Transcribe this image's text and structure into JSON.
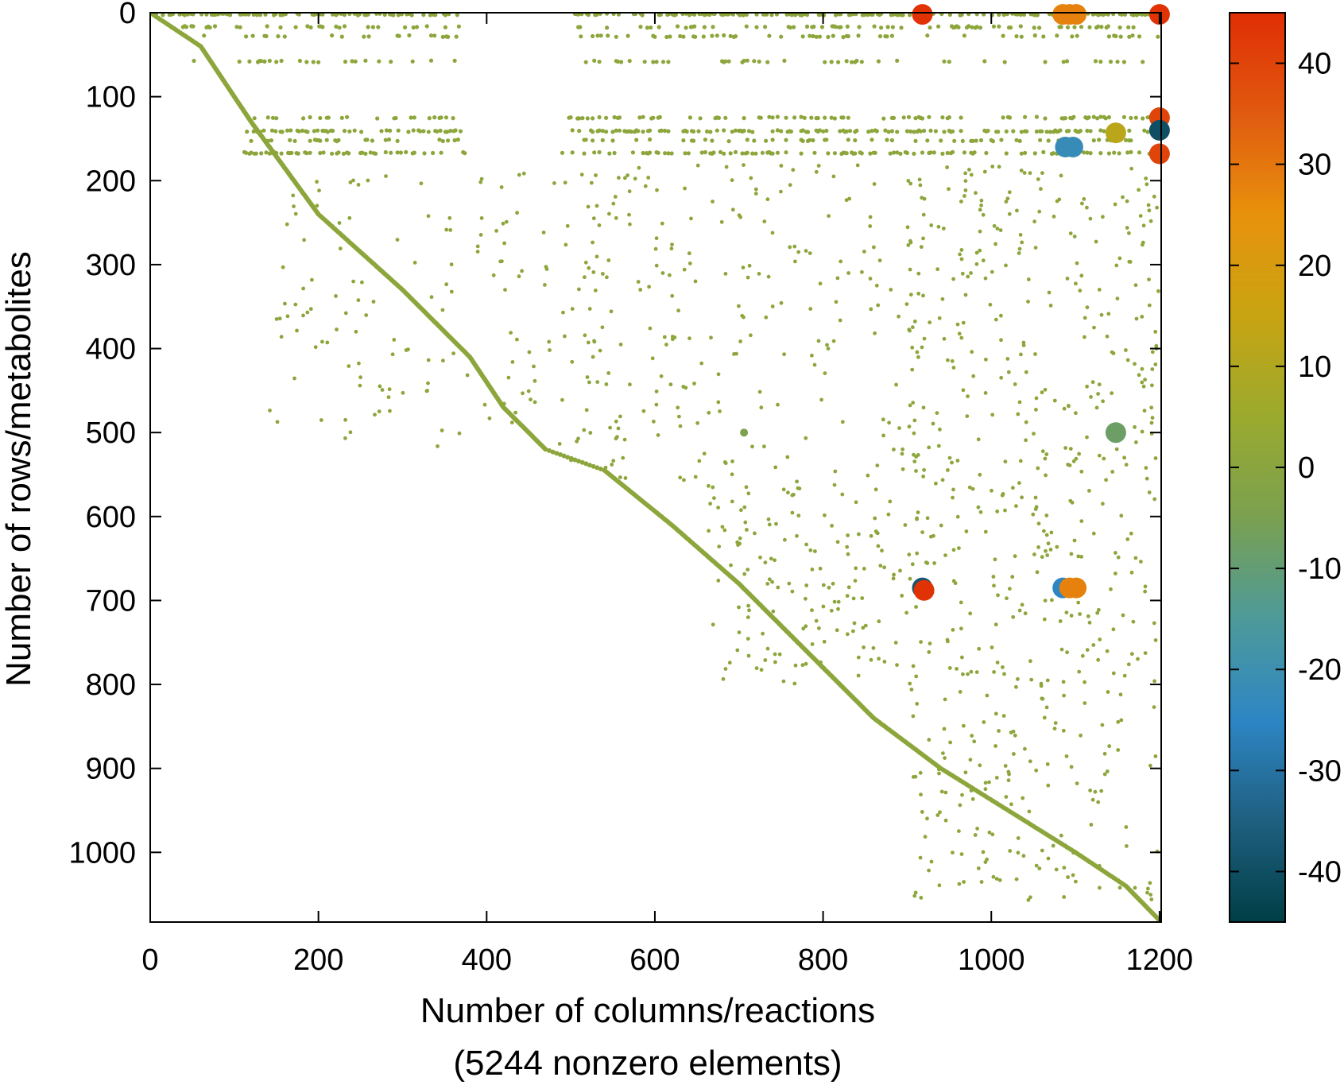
{
  "chart_data": {
    "type": "scatter",
    "title": "",
    "xlabel": "Number of columns/reactions",
    "xlabel_line2": "(5244 nonzero elements)",
    "ylabel": "Number of rows/metabolites",
    "xlim": [
      0,
      1202
    ],
    "ylim": [
      1083,
      0
    ],
    "y_inverted": true,
    "grid": false,
    "legend": "none",
    "x_ticks": [
      0,
      200,
      400,
      600,
      800,
      1000,
      1200
    ],
    "x_tick_labels": [
      "0",
      "200",
      "400",
      "600",
      "800",
      "1000",
      "1200"
    ],
    "y_ticks": [
      0,
      100,
      200,
      300,
      400,
      500,
      600,
      700,
      800,
      900,
      1000
    ],
    "y_tick_labels": [
      "0",
      "100",
      "200",
      "300",
      "400",
      "500",
      "600",
      "700",
      "800",
      "900",
      "1000"
    ],
    "colorbar": {
      "range": [
        -45,
        45
      ],
      "ticks": [
        40,
        30,
        20,
        10,
        0,
        -10,
        -20,
        -30,
        -40
      ],
      "tick_labels": [
        "40",
        "30",
        "20",
        "10",
        "0",
        "-10",
        "-20",
        "-30",
        "-40"
      ],
      "colormap": [
        "#003f45",
        "#1f5f80",
        "#2d86c4",
        "#4d9a9a",
        "#7aa050",
        "#9aaa2e",
        "#c8a412",
        "#e8920c",
        "#e05a10",
        "#e02e04"
      ]
    },
    "default_value": 1,
    "diagonal_band": [
      [
        0,
        0
      ],
      [
        60,
        40
      ],
      [
        120,
        130
      ],
      [
        200,
        240
      ],
      [
        300,
        330
      ],
      [
        380,
        410
      ],
      [
        420,
        470
      ],
      [
        470,
        520
      ],
      [
        540,
        545
      ],
      [
        620,
        610
      ],
      [
        700,
        680
      ],
      [
        780,
        760
      ],
      [
        860,
        840
      ],
      [
        940,
        900
      ],
      [
        1020,
        950
      ],
      [
        1100,
        1000
      ],
      [
        1160,
        1040
      ],
      [
        1202,
        1083
      ]
    ],
    "row_bands": [
      {
        "y": 2,
        "segments": [
          [
            5,
            370
          ],
          [
            505,
            1202
          ]
        ],
        "density": 0.45
      },
      {
        "y": 17,
        "segments": [
          [
            25,
            370
          ],
          [
            505,
            1190
          ]
        ],
        "density": 0.18
      },
      {
        "y": 28,
        "segments": [
          [
            60,
            365
          ],
          [
            510,
            1200
          ]
        ],
        "density": 0.14
      },
      {
        "y": 58,
        "segments": [
          [
            50,
            365
          ],
          [
            510,
            1180
          ]
        ],
        "density": 0.12
      },
      {
        "y": 125,
        "segments": [
          [
            110,
            365
          ],
          [
            490,
            1200
          ]
        ],
        "density": 0.22
      },
      {
        "y": 141,
        "segments": [
          [
            115,
            375
          ],
          [
            490,
            1200
          ]
        ],
        "density": 0.35
      },
      {
        "y": 152,
        "segments": [
          [
            120,
            370
          ],
          [
            490,
            1200
          ]
        ],
        "density": 0.14
      },
      {
        "y": 167,
        "segments": [
          [
            112,
            375
          ],
          [
            490,
            1200
          ]
        ],
        "density": 0.3
      }
    ],
    "scatter_regions": [
      {
        "x": [
          140,
          560
        ],
        "y": [
          190,
          520
        ],
        "count": 160
      },
      {
        "x": [
          500,
          920
        ],
        "y": [
          180,
          560
        ],
        "count": 220
      },
      {
        "x": [
          900,
          1200
        ],
        "y": [
          180,
          560
        ],
        "count": 260
      },
      {
        "x": [
          660,
          1200
        ],
        "y": [
          560,
          800
        ],
        "count": 300
      },
      {
        "x": [
          900,
          1200
        ],
        "y": [
          780,
          1060
        ],
        "count": 160
      }
    ],
    "highlighted_points": [
      {
        "x": 918,
        "y": 2,
        "value": 44
      },
      {
        "x": 1085,
        "y": 2,
        "value": 28
      },
      {
        "x": 1093,
        "y": 2,
        "value": 28
      },
      {
        "x": 1101,
        "y": 2,
        "value": 28
      },
      {
        "x": 1200,
        "y": 2,
        "value": 44
      },
      {
        "x": 1200,
        "y": 125,
        "value": 40
      },
      {
        "x": 1200,
        "y": 140,
        "value": -40
      },
      {
        "x": 1200,
        "y": 168,
        "value": 40
      },
      {
        "x": 1088,
        "y": 160,
        "value": -22
      },
      {
        "x": 1097,
        "y": 160,
        "value": -22
      },
      {
        "x": 1148,
        "y": 143,
        "value": 12
      },
      {
        "x": 918,
        "y": 685,
        "value": -38
      },
      {
        "x": 920,
        "y": 688,
        "value": 44
      },
      {
        "x": 1085,
        "y": 685,
        "value": -25
      },
      {
        "x": 1093,
        "y": 685,
        "value": 28
      },
      {
        "x": 1101,
        "y": 685,
        "value": 28
      },
      {
        "x": 1148,
        "y": 500,
        "value": -8
      },
      {
        "x": 706,
        "y": 500,
        "value": -4
      }
    ]
  }
}
